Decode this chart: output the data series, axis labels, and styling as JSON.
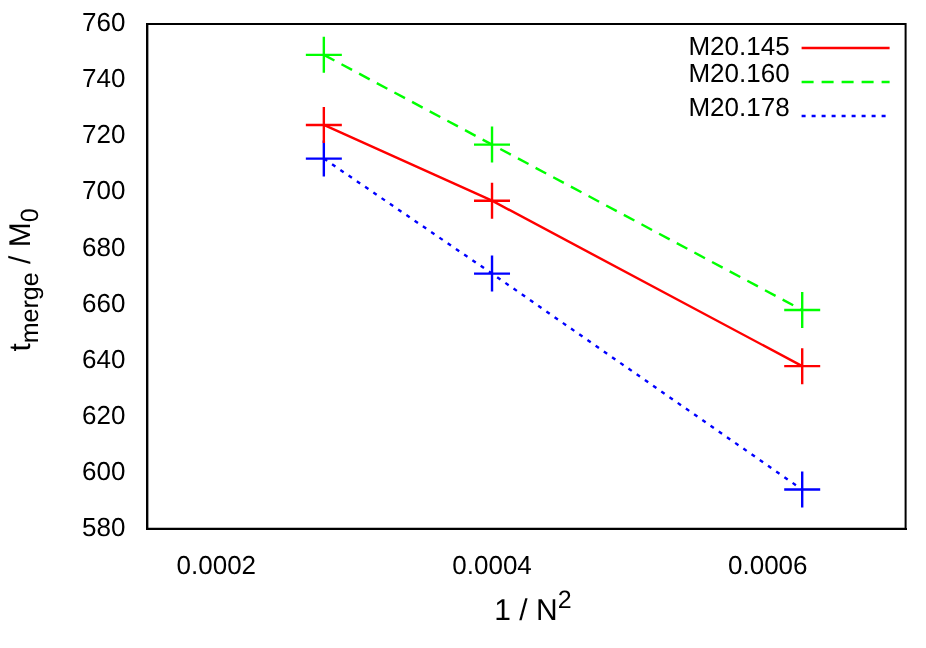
{
  "chart_data": {
    "type": "line",
    "xlabel": "1 / N$^{2}$",
    "ylabel": "t$_{merge}$ / M$_{0}$",
    "xlim": [
      0.00015,
      0.0007
    ],
    "xticks": [
      0.0002,
      0.0004,
      0.0006
    ],
    "ylim": [
      580,
      760
    ],
    "yticks": [
      580,
      600,
      620,
      640,
      660,
      680,
      700,
      720,
      740,
      760
    ],
    "grid": false,
    "legend": "top right",
    "series": [
      {
        "name": "M20.145",
        "color": "#ff0000",
        "x": [
          0.000278,
          0.0004,
          0.000625
        ],
        "values": [
          724,
          697,
          638
        ],
        "marker": "cross",
        "line_style": "solid"
      },
      {
        "name": "M20.160",
        "color": "#00ff00",
        "x": [
          0.000278,
          0.0004,
          0.000625
        ],
        "values": [
          749,
          717,
          658
        ],
        "marker": "cross",
        "line_style": "dashed"
      },
      {
        "name": "M20.178",
        "color": "#0000ff",
        "x": [
          0.000278,
          0.0004,
          0.000625
        ],
        "values": [
          712,
          671,
          594
        ],
        "marker": "cross",
        "line_style": "dotted"
      }
    ]
  }
}
